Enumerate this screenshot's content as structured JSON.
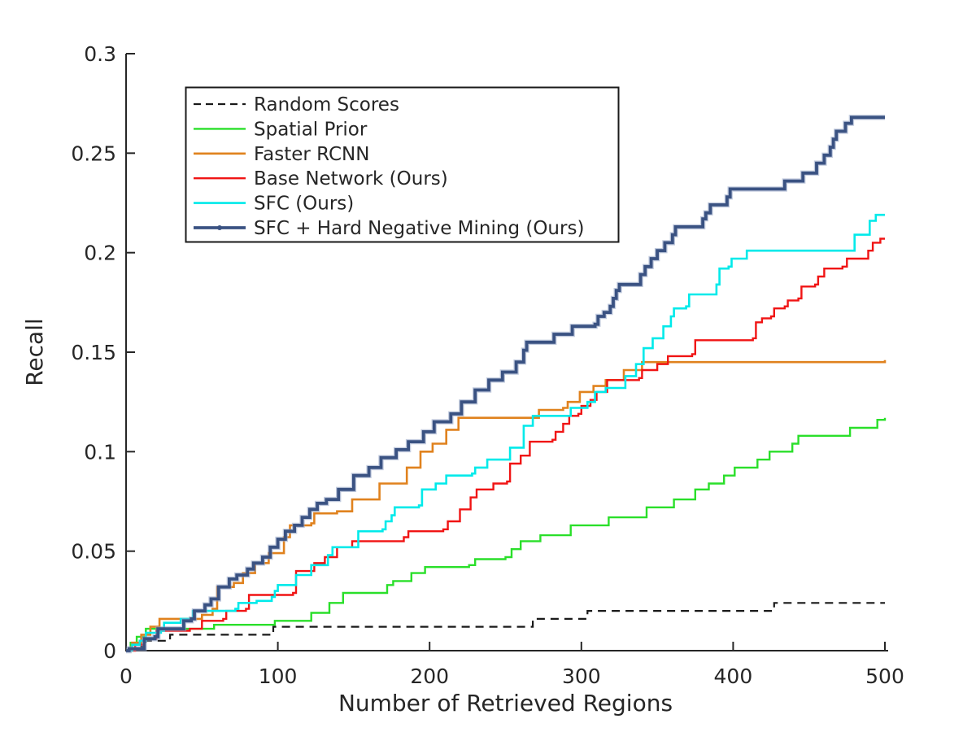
{
  "chart_data": {
    "type": "line",
    "title": "",
    "xlabel": "Number of Retrieved Regions",
    "ylabel": "Recall",
    "xlim": [
      0,
      500
    ],
    "ylim": [
      0,
      0.3
    ],
    "grid": false,
    "legend_position": "upper left",
    "axis_color": "#262626",
    "background_color": "#ffffff",
    "x_ticks": [
      0,
      100,
      200,
      300,
      400,
      500
    ],
    "x_tick_labels": [
      "0",
      "100",
      "200",
      "300",
      "400",
      "500"
    ],
    "y_ticks": [
      0,
      0.05,
      0.1,
      0.15,
      0.2,
      0.25,
      0.3
    ],
    "y_tick_labels": [
      "0",
      "0.05",
      "0.1",
      "0.15",
      "0.2",
      "0.25",
      "0.3"
    ],
    "series": [
      {
        "name": "Random Scores",
        "color": "#1a1a1a",
        "width": 2.2,
        "dash": [
          10,
          7
        ],
        "marker": "none",
        "final_value": 0.024,
        "points": [
          [
            0,
            0
          ],
          [
            3,
            0.001
          ],
          [
            10,
            0.002
          ],
          [
            13,
            0.005
          ],
          [
            27,
            0.005
          ],
          [
            29,
            0.008
          ],
          [
            95,
            0.008
          ],
          [
            97,
            0.012
          ],
          [
            266,
            0.012
          ],
          [
            268,
            0.016
          ],
          [
            302,
            0.016
          ],
          [
            304,
            0.02
          ],
          [
            425,
            0.02
          ],
          [
            427,
            0.024
          ],
          [
            500,
            0.024
          ]
        ]
      },
      {
        "name": "Spatial Prior",
        "color": "#2adf2a",
        "width": 2.4,
        "dash": null,
        "marker": "none",
        "final_value": 0.117,
        "points": [
          [
            0,
            0
          ],
          [
            3,
            0.004
          ],
          [
            7,
            0.007
          ],
          [
            13,
            0.011
          ],
          [
            58,
            0.013
          ],
          [
            98,
            0.015
          ],
          [
            120,
            0.015
          ],
          [
            122,
            0.019
          ],
          [
            132,
            0.019
          ],
          [
            134,
            0.024
          ],
          [
            141,
            0.024
          ],
          [
            143,
            0.029
          ],
          [
            172,
            0.033
          ],
          [
            176,
            0.035
          ],
          [
            188,
            0.039
          ],
          [
            197,
            0.042
          ],
          [
            226,
            0.043
          ],
          [
            230,
            0.046
          ],
          [
            250,
            0.047
          ],
          [
            254,
            0.051
          ],
          [
            260,
            0.055
          ],
          [
            273,
            0.058
          ],
          [
            293,
            0.063
          ],
          [
            318,
            0.067
          ],
          [
            343,
            0.072
          ],
          [
            361,
            0.076
          ],
          [
            375,
            0.081
          ],
          [
            384,
            0.084
          ],
          [
            394,
            0.088
          ],
          [
            401,
            0.092
          ],
          [
            416,
            0.096
          ],
          [
            424,
            0.1
          ],
          [
            439,
            0.104
          ],
          [
            443,
            0.108
          ],
          [
            474,
            0.108
          ],
          [
            477,
            0.112
          ],
          [
            495,
            0.116
          ],
          [
            500,
            0.117
          ]
        ]
      },
      {
        "name": "Faster RCNN",
        "color": "#e0821e",
        "width": 2.6,
        "dash": null,
        "marker": "none",
        "final_value": 0.146,
        "points": [
          [
            0,
            0
          ],
          [
            4,
            0.004
          ],
          [
            10,
            0.008
          ],
          [
            16,
            0.012
          ],
          [
            22,
            0.016
          ],
          [
            50,
            0.018
          ],
          [
            57,
            0.021
          ],
          [
            60,
            0.032
          ],
          [
            71,
            0.034
          ],
          [
            77,
            0.039
          ],
          [
            85,
            0.044
          ],
          [
            94,
            0.049
          ],
          [
            104,
            0.057
          ],
          [
            108,
            0.063
          ],
          [
            122,
            0.064
          ],
          [
            124,
            0.069
          ],
          [
            139,
            0.07
          ],
          [
            149,
            0.076
          ],
          [
            167,
            0.084
          ],
          [
            185,
            0.092
          ],
          [
            194,
            0.1
          ],
          [
            202,
            0.104
          ],
          [
            211,
            0.111
          ],
          [
            219,
            0.117
          ],
          [
            270,
            0.117
          ],
          [
            272,
            0.121
          ],
          [
            288,
            0.122
          ],
          [
            291,
            0.125
          ],
          [
            299,
            0.13
          ],
          [
            308,
            0.133
          ],
          [
            316,
            0.136
          ],
          [
            328,
            0.141
          ],
          [
            340,
            0.145
          ],
          [
            500,
            0.146
          ]
        ]
      },
      {
        "name": "Base Network (Ours)",
        "color": "#f01414",
        "width": 2.4,
        "dash": null,
        "marker": "none",
        "final_value": 0.207,
        "points": [
          [
            0,
            0
          ],
          [
            6,
            0.003
          ],
          [
            12,
            0.006
          ],
          [
            20,
            0.01
          ],
          [
            42,
            0.011
          ],
          [
            50,
            0.015
          ],
          [
            64,
            0.016
          ],
          [
            66,
            0.02
          ],
          [
            79,
            0.021
          ],
          [
            81,
            0.028
          ],
          [
            110,
            0.029
          ],
          [
            112,
            0.04
          ],
          [
            124,
            0.044
          ],
          [
            131,
            0.047
          ],
          [
            139,
            0.052
          ],
          [
            149,
            0.055
          ],
          [
            183,
            0.057
          ],
          [
            186,
            0.06
          ],
          [
            209,
            0.061
          ],
          [
            212,
            0.065
          ],
          [
            220,
            0.071
          ],
          [
            227,
            0.077
          ],
          [
            231,
            0.081
          ],
          [
            242,
            0.084
          ],
          [
            251,
            0.085
          ],
          [
            253,
            0.094
          ],
          [
            260,
            0.098
          ],
          [
            266,
            0.105
          ],
          [
            281,
            0.106
          ],
          [
            283,
            0.11
          ],
          [
            288,
            0.114
          ],
          [
            292,
            0.118
          ],
          [
            298,
            0.119
          ],
          [
            300,
            0.123
          ],
          [
            306,
            0.126
          ],
          [
            310,
            0.13
          ],
          [
            317,
            0.136
          ],
          [
            338,
            0.137
          ],
          [
            340,
            0.141
          ],
          [
            350,
            0.144
          ],
          [
            357,
            0.148
          ],
          [
            373,
            0.149
          ],
          [
            375,
            0.156
          ],
          [
            413,
            0.157
          ],
          [
            415,
            0.165
          ],
          [
            419,
            0.167
          ],
          [
            425,
            0.168
          ],
          [
            427,
            0.172
          ],
          [
            434,
            0.173
          ],
          [
            436,
            0.176
          ],
          [
            443,
            0.177
          ],
          [
            445,
            0.183
          ],
          [
            454,
            0.184
          ],
          [
            456,
            0.188
          ],
          [
            460,
            0.192
          ],
          [
            472,
            0.193
          ],
          [
            475,
            0.197
          ],
          [
            487,
            0.197
          ],
          [
            489,
            0.201
          ],
          [
            492,
            0.205
          ],
          [
            497,
            0.207
          ],
          [
            500,
            0.207
          ]
        ]
      },
      {
        "name": "SFC (Ours)",
        "color": "#00eaea",
        "width": 2.6,
        "dash": null,
        "marker": "none",
        "final_value": 0.219,
        "points": [
          [
            0,
            0
          ],
          [
            4,
            0.003
          ],
          [
            9,
            0.005
          ],
          [
            13,
            0.009
          ],
          [
            23,
            0.01
          ],
          [
            25,
            0.014
          ],
          [
            34,
            0.014
          ],
          [
            36,
            0.016
          ],
          [
            42,
            0.016
          ],
          [
            44,
            0.02
          ],
          [
            72,
            0.021
          ],
          [
            74,
            0.024
          ],
          [
            86,
            0.025
          ],
          [
            96,
            0.027
          ],
          [
            98,
            0.03
          ],
          [
            100,
            0.033
          ],
          [
            110,
            0.033
          ],
          [
            112,
            0.038
          ],
          [
            122,
            0.043
          ],
          [
            133,
            0.048
          ],
          [
            136,
            0.052
          ],
          [
            151,
            0.052
          ],
          [
            153,
            0.06
          ],
          [
            169,
            0.061
          ],
          [
            171,
            0.065
          ],
          [
            175,
            0.068
          ],
          [
            177,
            0.072
          ],
          [
            193,
            0.073
          ],
          [
            195,
            0.081
          ],
          [
            204,
            0.084
          ],
          [
            211,
            0.088
          ],
          [
            228,
            0.089
          ],
          [
            230,
            0.092
          ],
          [
            238,
            0.096
          ],
          [
            251,
            0.096
          ],
          [
            253,
            0.102
          ],
          [
            262,
            0.113
          ],
          [
            268,
            0.118
          ],
          [
            291,
            0.118
          ],
          [
            293,
            0.122
          ],
          [
            304,
            0.125
          ],
          [
            309,
            0.13
          ],
          [
            316,
            0.132
          ],
          [
            329,
            0.138
          ],
          [
            336,
            0.144
          ],
          [
            341,
            0.152
          ],
          [
            347,
            0.157
          ],
          [
            354,
            0.163
          ],
          [
            359,
            0.168
          ],
          [
            361,
            0.172
          ],
          [
            369,
            0.173
          ],
          [
            371,
            0.179
          ],
          [
            387,
            0.179
          ],
          [
            389,
            0.184
          ],
          [
            391,
            0.192
          ],
          [
            397,
            0.193
          ],
          [
            399,
            0.197
          ],
          [
            409,
            0.201
          ],
          [
            478,
            0.201
          ],
          [
            480,
            0.209
          ],
          [
            488,
            0.209
          ],
          [
            490,
            0.216
          ],
          [
            494,
            0.219
          ],
          [
            500,
            0.219
          ]
        ]
      },
      {
        "name": "SFC + Hard Negative Mining (Ours)",
        "color": "#3a5282",
        "halo_color": "#8fa0c2",
        "width": 3.8,
        "dash": null,
        "marker": "dot",
        "final_value": 0.268,
        "points": [
          [
            0,
            0
          ],
          [
            2,
            0.001
          ],
          [
            10,
            0.001
          ],
          [
            12,
            0.006
          ],
          [
            19,
            0.007
          ],
          [
            21,
            0.011
          ],
          [
            36,
            0.011
          ],
          [
            38,
            0.015
          ],
          [
            43,
            0.016
          ],
          [
            45,
            0.02
          ],
          [
            52,
            0.023
          ],
          [
            56,
            0.026
          ],
          [
            61,
            0.032
          ],
          [
            68,
            0.036
          ],
          [
            73,
            0.038
          ],
          [
            80,
            0.041
          ],
          [
            84,
            0.044
          ],
          [
            90,
            0.047
          ],
          [
            95,
            0.052
          ],
          [
            100,
            0.056
          ],
          [
            105,
            0.06
          ],
          [
            111,
            0.063
          ],
          [
            116,
            0.067
          ],
          [
            121,
            0.071
          ],
          [
            126,
            0.074
          ],
          [
            132,
            0.076
          ],
          [
            140,
            0.081
          ],
          [
            150,
            0.088
          ],
          [
            160,
            0.092
          ],
          [
            168,
            0.097
          ],
          [
            178,
            0.101
          ],
          [
            186,
            0.105
          ],
          [
            196,
            0.11
          ],
          [
            203,
            0.115
          ],
          [
            214,
            0.119
          ],
          [
            221,
            0.125
          ],
          [
            230,
            0.131
          ],
          [
            239,
            0.136
          ],
          [
            248,
            0.14
          ],
          [
            257,
            0.145
          ],
          [
            262,
            0.151
          ],
          [
            264,
            0.155
          ],
          [
            280,
            0.155
          ],
          [
            282,
            0.159
          ],
          [
            294,
            0.163
          ],
          [
            309,
            0.164
          ],
          [
            311,
            0.168
          ],
          [
            315,
            0.17
          ],
          [
            319,
            0.173
          ],
          [
            321,
            0.177
          ],
          [
            323,
            0.181
          ],
          [
            325,
            0.184
          ],
          [
            337,
            0.184
          ],
          [
            339,
            0.189
          ],
          [
            342,
            0.193
          ],
          [
            346,
            0.197
          ],
          [
            350,
            0.201
          ],
          [
            355,
            0.205
          ],
          [
            360,
            0.209
          ],
          [
            362,
            0.213
          ],
          [
            378,
            0.213
          ],
          [
            380,
            0.217
          ],
          [
            382,
            0.22
          ],
          [
            385,
            0.224
          ],
          [
            396,
            0.228
          ],
          [
            398,
            0.232
          ],
          [
            432,
            0.232
          ],
          [
            434,
            0.236
          ],
          [
            446,
            0.24
          ],
          [
            455,
            0.245
          ],
          [
            460,
            0.249
          ],
          [
            464,
            0.253
          ],
          [
            466,
            0.257
          ],
          [
            468,
            0.261
          ],
          [
            474,
            0.265
          ],
          [
            478,
            0.268
          ],
          [
            500,
            0.268
          ]
        ]
      }
    ]
  }
}
